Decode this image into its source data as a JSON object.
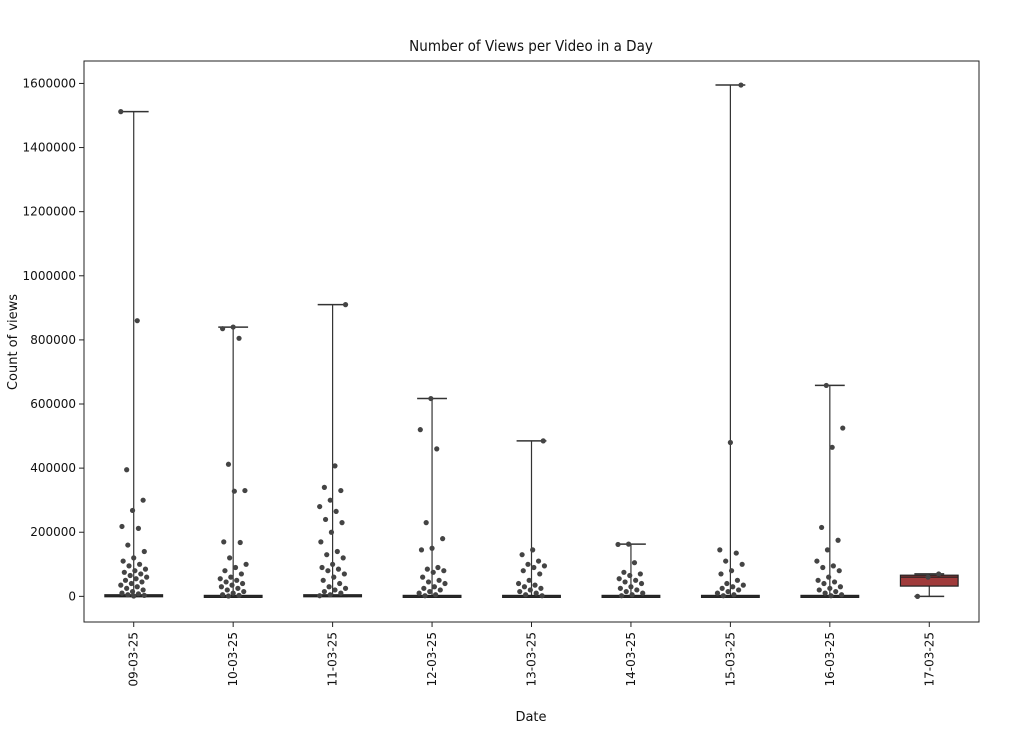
{
  "chart_data": {
    "type": "box",
    "title": "Number of Views per Video in a Day",
    "xlabel": "Date",
    "ylabel": "Count of views",
    "ylim": [
      -80000,
      1670000
    ],
    "yticks": [
      0,
      200000,
      400000,
      600000,
      800000,
      1000000,
      1200000,
      1400000,
      1600000
    ],
    "yticklabels": [
      "0",
      "200000",
      "400000",
      "600000",
      "800000",
      "1000000",
      "1200000",
      "1400000",
      "1600000"
    ],
    "categories": [
      "09-03-25",
      "10-03-25",
      "11-03-25",
      "12-03-25",
      "13-03-25",
      "14-03-25",
      "15-03-25",
      "16-03-25",
      "17-03-25"
    ],
    "grid": false,
    "colors": {
      "box_highlight": "#a03b3b",
      "points": "#444444",
      "lines": "#333333"
    },
    "boxes": [
      {
        "category": "09-03-25",
        "q1": 0,
        "median": 1000,
        "q3": 5000,
        "whisker_low": 0,
        "whisker_high": 1512000
      },
      {
        "category": "10-03-25",
        "q1": 0,
        "median": 500,
        "q3": 3000,
        "whisker_low": 0,
        "whisker_high": 840000
      },
      {
        "category": "11-03-25",
        "q1": 0,
        "median": 1000,
        "q3": 5000,
        "whisker_low": 0,
        "whisker_high": 910000
      },
      {
        "category": "12-03-25",
        "q1": 0,
        "median": 500,
        "q3": 3000,
        "whisker_low": 0,
        "whisker_high": 617000
      },
      {
        "category": "13-03-25",
        "q1": 0,
        "median": 500,
        "q3": 3000,
        "whisker_low": 0,
        "whisker_high": 485000
      },
      {
        "category": "14-03-25",
        "q1": 0,
        "median": 500,
        "q3": 3000,
        "whisker_low": 0,
        "whisker_high": 163000
      },
      {
        "category": "15-03-25",
        "q1": 0,
        "median": 500,
        "q3": 3000,
        "whisker_low": 0,
        "whisker_high": 1595000
      },
      {
        "category": "16-03-25",
        "q1": 0,
        "median": 500,
        "q3": 3000,
        "whisker_low": 0,
        "whisker_high": 658000
      },
      {
        "category": "17-03-25",
        "q1": 32000,
        "median": 60000,
        "q3": 66000,
        "whisker_low": 0,
        "whisker_high": 70000
      }
    ],
    "points": [
      [
        1512000,
        860000,
        395000,
        300000,
        268000,
        218000,
        212000,
        160000,
        140000,
        120000,
        110000,
        100000,
        95000,
        85000,
        80000,
        75000,
        70000,
        65000,
        60000,
        55000,
        50000,
        45000,
        40000,
        35000,
        30000,
        25000,
        20000,
        15000,
        10000,
        8000,
        5000,
        3000,
        1000
      ],
      [
        840000,
        835000,
        805000,
        412000,
        330000,
        328000,
        170000,
        168000,
        120000,
        100000,
        90000,
        80000,
        70000,
        60000,
        55000,
        50000,
        45000,
        40000,
        35000,
        30000,
        25000,
        20000,
        15000,
        10000,
        5000,
        3000,
        1000
      ],
      [
        910000,
        407000,
        340000,
        330000,
        300000,
        280000,
        265000,
        240000,
        230000,
        200000,
        170000,
        140000,
        130000,
        120000,
        100000,
        90000,
        85000,
        80000,
        70000,
        60000,
        50000,
        40000,
        30000,
        25000,
        20000,
        15000,
        10000,
        5000,
        2000
      ],
      [
        617000,
        520000,
        460000,
        230000,
        180000,
        150000,
        145000,
        90000,
        85000,
        80000,
        75000,
        60000,
        50000,
        45000,
        40000,
        30000,
        25000,
        20000,
        15000,
        10000,
        5000,
        2000
      ],
      [
        485000,
        145000,
        130000,
        110000,
        100000,
        95000,
        90000,
        80000,
        70000,
        50000,
        40000,
        35000,
        30000,
        25000,
        20000,
        15000,
        10000,
        5000,
        2000
      ],
      [
        163000,
        162000,
        105000,
        75000,
        70000,
        65000,
        55000,
        50000,
        45000,
        40000,
        30000,
        25000,
        20000,
        15000,
        10000,
        5000,
        2000
      ],
      [
        1595000,
        480000,
        145000,
        135000,
        110000,
        100000,
        80000,
        70000,
        50000,
        40000,
        35000,
        30000,
        25000,
        20000,
        15000,
        10000,
        5000,
        2000
      ],
      [
        658000,
        525000,
        465000,
        215000,
        175000,
        145000,
        110000,
        95000,
        90000,
        80000,
        60000,
        50000,
        45000,
        40000,
        30000,
        25000,
        20000,
        15000,
        10000,
        5000,
        2000
      ],
      [
        70000,
        60000,
        0
      ]
    ]
  }
}
